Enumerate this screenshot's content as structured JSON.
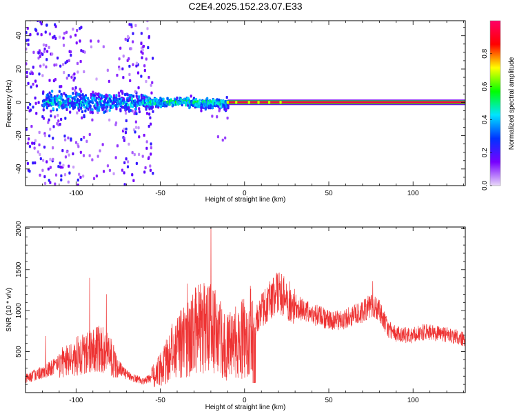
{
  "title": "C2E4.2025.152.23.07.E33",
  "chart_data": [
    {
      "type": "heatmap",
      "name": "spectrogram",
      "xlabel": "Height of straight line (km)",
      "ylabel": "Frequency (Hz)",
      "xlim": [
        -130,
        131
      ],
      "ylim": [
        -50,
        49
      ],
      "xticks": [
        -100,
        -50,
        0,
        50,
        100
      ],
      "xtick_labels": [
        "-100",
        "-50",
        "0",
        "50",
        "100"
      ],
      "yticks": [
        -40,
        -20,
        0,
        20,
        40
      ],
      "ytick_labels": [
        "-40",
        "-20",
        "0",
        "20",
        "40"
      ],
      "grid": false,
      "colorbar": {
        "label": "Normalized spectral amplitude",
        "range": [
          0,
          1
        ],
        "ticks": [
          0.0,
          0.2,
          0.4,
          0.6,
          0.8
        ],
        "tick_labels": [
          "0.0",
          "0.2",
          "0.4",
          "0.6",
          "0.8"
        ],
        "colormap": "rainbow",
        "colors": [
          "#e8d8f8",
          "#7700ff",
          "#0033ff",
          "#00e5ff",
          "#00ff00",
          "#ffff00",
          "#ff0000",
          "#ff0066"
        ]
      },
      "features": {
        "carrier_line": {
          "freq": 0,
          "x_start": -10,
          "x_end": 131,
          "amplitude": 0.95
        },
        "noisy_region": {
          "x_start": -130,
          "x_end": -55,
          "freq_spread": 50,
          "amplitude": 0.2
        },
        "core_region": {
          "x_start": -120,
          "x_end": -55,
          "freq_spread": 12,
          "amplitude": 0.35
        },
        "transition_region": {
          "x_start": -57,
          "x_end": -10,
          "freq_spread": 5,
          "amplitude": 0.45
        }
      }
    },
    {
      "type": "line",
      "name": "snr",
      "xlabel": "Height of straight line (km)",
      "ylabel": "SNR (10 * v/v)",
      "xlim": [
        -130,
        131
      ],
      "ylim": [
        0,
        2020
      ],
      "xticks": [
        -100,
        -50,
        0,
        50,
        100
      ],
      "xtick_labels": [
        "-100",
        "-50",
        "0",
        "50",
        "100"
      ],
      "yticks": [
        500,
        1000,
        1500,
        2000
      ],
      "ytick_labels": [
        "500",
        "1000",
        "1500",
        "2000"
      ],
      "grid": false,
      "color": "#ee3333",
      "series": [
        {
          "x": [
            -130,
            -125,
            -120,
            -115,
            -110,
            -105,
            -100,
            -95,
            -90,
            -85,
            -80,
            -75,
            -70,
            -65,
            -60,
            -55,
            -50,
            -45,
            -40,
            -35,
            -30,
            -25,
            -20,
            -15,
            -10,
            -5,
            0,
            5,
            10,
            15,
            20,
            25,
            30,
            35,
            40,
            45,
            50,
            55,
            60,
            65,
            70,
            75,
            80,
            85,
            90,
            95,
            100,
            105,
            110,
            115,
            120,
            125,
            131
          ],
          "values": [
            170,
            210,
            240,
            290,
            340,
            390,
            440,
            470,
            520,
            540,
            460,
            310,
            220,
            170,
            140,
            180,
            280,
            430,
            560,
            660,
            740,
            780,
            800,
            660,
            560,
            620,
            680,
            800,
            980,
            1140,
            1220,
            1140,
            1060,
            1000,
            960,
            930,
            880,
            880,
            900,
            940,
            990,
            1060,
            1000,
            780,
            720,
            700,
            700,
            740,
            730,
            710,
            700,
            690,
            650
          ],
          "peaks": [
            {
              "x": -118,
              "y": 690
            },
            {
              "x": -92,
              "y": 1400
            },
            {
              "x": -82,
              "y": 1200
            },
            {
              "x": -20,
              "y": 2020
            },
            {
              "x": -34,
              "y": 1330
            },
            {
              "x": 19,
              "y": 1460
            },
            {
              "x": 76,
              "y": 1360
            }
          ]
        }
      ]
    }
  ]
}
